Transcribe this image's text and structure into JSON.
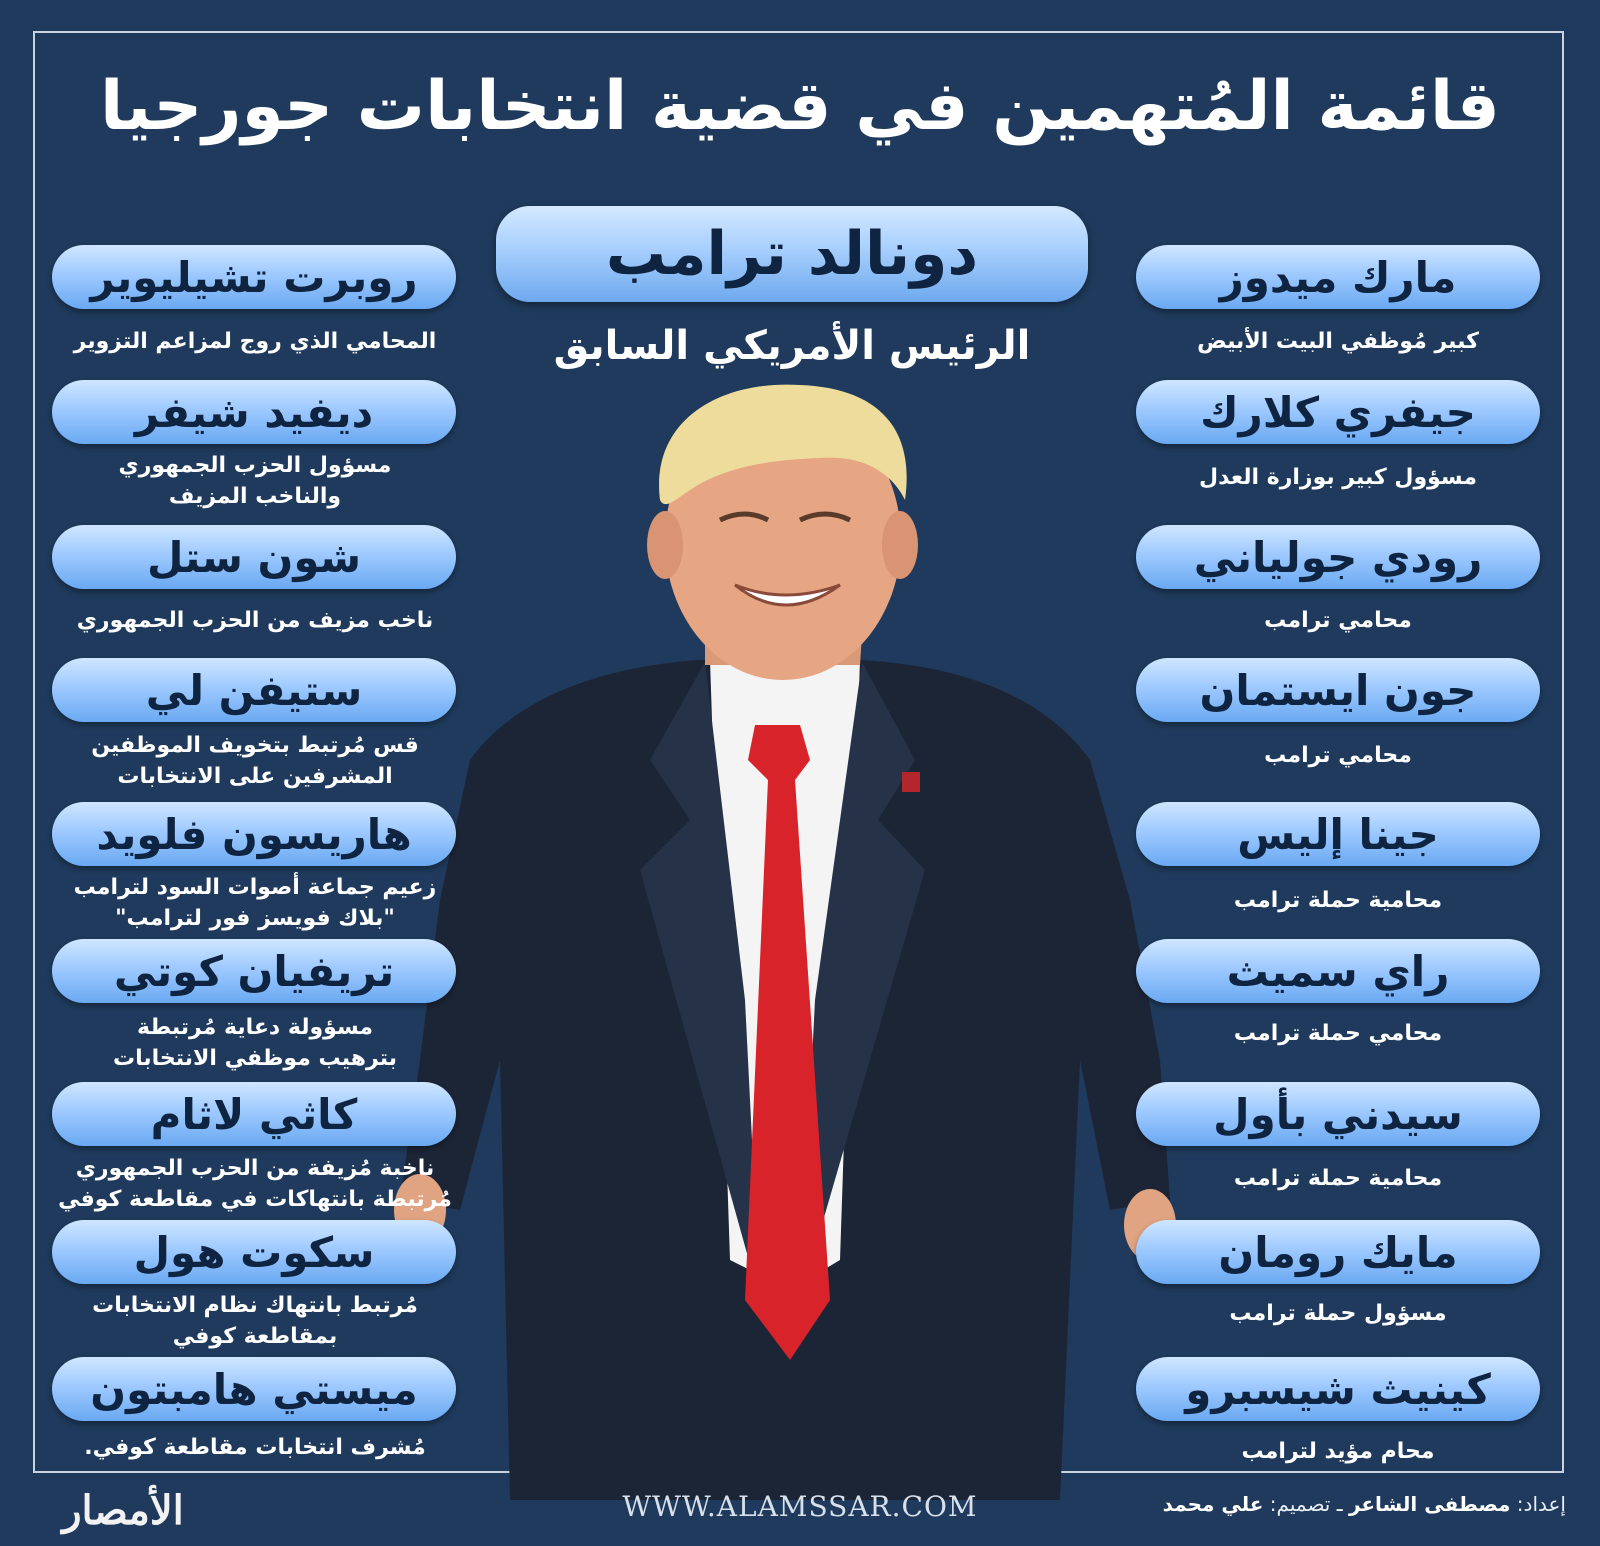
{
  "title": "قائمة المُتهمين في قضية انتخابات جورجيا",
  "center": {
    "name": "دونالد ترامب",
    "role": "الرئيس الأمريكي السابق"
  },
  "left": [
    {
      "name": "روبرت تشيليوير",
      "desc": [
        "المحامي الذي روج لمزاعم التزوير"
      ]
    },
    {
      "name": "ديفيد شيفر",
      "desc": [
        "مسؤول الحزب الجمهوري",
        "والناخب المزيف"
      ]
    },
    {
      "name": "شون ستل",
      "desc": [
        "ناخب مزيف من الحزب الجمهوري"
      ]
    },
    {
      "name": "ستيفن لي",
      "desc": [
        "قس مُرتبط بتخويف الموظفين",
        "المشرفين على الانتخابات"
      ]
    },
    {
      "name": "هاريسون فلويد",
      "desc": [
        "زعيم جماعة أصوات السود لترامب",
        "\"بلاك فويسز فور لترامب\""
      ]
    },
    {
      "name": "تريفيان كوتي",
      "desc": [
        "مسؤولة دعاية مُرتبطة",
        "بترهيب موظفي الانتخابات"
      ]
    },
    {
      "name": "كاثي لاثام",
      "desc": [
        "ناخبة مُزيفة من الحزب الجمهوري",
        "مُرتبطة بانتهاكات في مقاطعة كوفي"
      ]
    },
    {
      "name": "سكوت هول",
      "desc": [
        "مُرتبط بانتهاك نظام الانتخابات",
        "بمقاطعة كوفي"
      ]
    },
    {
      "name": "ميستي هامبتون",
      "desc": [
        "مُشرف انتخابات مقاطعة كوفي."
      ]
    }
  ],
  "right": [
    {
      "name": "مارك ميدوز",
      "desc": [
        "كبير مُوظفي البيت الأبيض"
      ]
    },
    {
      "name": "جيفري كلارك",
      "desc": [
        "مسؤول كبير بوزارة العدل"
      ]
    },
    {
      "name": "رودي جولياني",
      "desc": [
        "محامي ترامب"
      ]
    },
    {
      "name": "جون ايستمان",
      "desc": [
        "محامي ترامب"
      ]
    },
    {
      "name": "جينا إليس",
      "desc": [
        "محامية حملة ترامب"
      ]
    },
    {
      "name": "راي سميث",
      "desc": [
        "محامي حملة ترامب"
      ]
    },
    {
      "name": "سيدني بأول",
      "desc": [
        "محامية حملة ترامب"
      ]
    },
    {
      "name": "مايك رومان",
      "desc": [
        "مسؤول حملة ترامب"
      ]
    },
    {
      "name": "كينيث شيسبرو",
      "desc": [
        "محام مؤيد لترامب"
      ]
    }
  ],
  "footer": {
    "url": "WWW.ALAMSSAR.COM",
    "prepared_label": "إعداد:",
    "prepared_by": "مصطفى الشاعر",
    "sep": " ـ ",
    "design_label": "تصميم:",
    "designed_by": "علي محمد",
    "logo": "الأمصار"
  }
}
